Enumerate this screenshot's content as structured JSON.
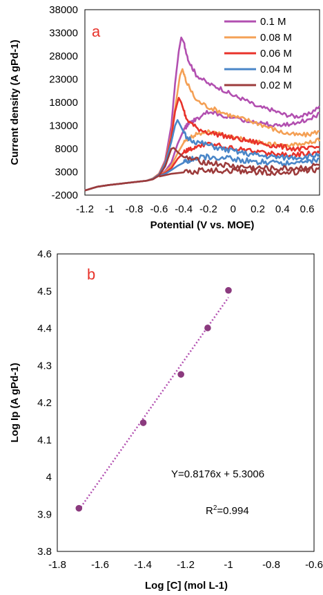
{
  "chart_data": [
    {
      "type": "line",
      "panel_label": "a",
      "xlabel": "Potential (V vs. MOE)",
      "ylabel": "Current density (A gPd-1)",
      "xlim": [
        -1.2,
        0.7
      ],
      "ylim": [
        -2000,
        38000
      ],
      "x_ticks": [
        "-1.2",
        "-1",
        "-0.8",
        "-0.6",
        "-0.4",
        "-0.2",
        "0",
        "0.2",
        "0.4",
        "0.6"
      ],
      "y_ticks": [
        "-2000",
        "3000",
        "8000",
        "13000",
        "18000",
        "23000",
        "28000",
        "33000",
        "38000"
      ],
      "legend_position": "top-right",
      "series": [
        {
          "name": "0.1 M",
          "color": "#b24fb0",
          "forward": [
            [
              -1.2,
              -1000
            ],
            [
              -1.1,
              -200
            ],
            [
              -1,
              200
            ],
            [
              -0.9,
              500
            ],
            [
              -0.8,
              800
            ],
            [
              -0.7,
              1100
            ],
            [
              -0.65,
              1600
            ],
            [
              -0.6,
              2600
            ],
            [
              -0.55,
              5500
            ],
            [
              -0.5,
              13000
            ],
            [
              -0.47,
              22000
            ],
            [
              -0.44,
              29000
            ],
            [
              -0.42,
              32000
            ],
            [
              -0.4,
              31000
            ],
            [
              -0.36,
              27000
            ],
            [
              -0.3,
              24000
            ],
            [
              -0.2,
              22000
            ],
            [
              -0.1,
              21000
            ],
            [
              0,
              19500
            ],
            [
              0.1,
              18500
            ],
            [
              0.2,
              17000
            ],
            [
              0.3,
              16500
            ],
            [
              0.4,
              15500
            ],
            [
              0.5,
              15000
            ],
            [
              0.6,
              15200
            ],
            [
              0.7,
              17200
            ]
          ],
          "reverse": [
            [
              0.7,
              15500
            ],
            [
              0.6,
              14200
            ],
            [
              0.5,
              13600
            ],
            [
              0.4,
              13100
            ],
            [
              0.3,
              13200
            ],
            [
              0.2,
              13600
            ],
            [
              0.1,
              14100
            ],
            [
              0,
              14500
            ],
            [
              -0.1,
              15200
            ],
            [
              -0.2,
              16000
            ],
            [
              -0.3,
              14300
            ],
            [
              -0.36,
              13500
            ],
            [
              -0.4,
              12000
            ],
            [
              -0.45,
              9000
            ],
            [
              -0.5,
              5000
            ],
            [
              -0.55,
              3200
            ],
            [
              -0.6,
              2300
            ]
          ]
        },
        {
          "name": "0.08 M",
          "color": "#f4a055",
          "forward": [
            [
              -1.2,
              -1000
            ],
            [
              -1.1,
              -200
            ],
            [
              -1,
              200
            ],
            [
              -0.9,
              500
            ],
            [
              -0.8,
              800
            ],
            [
              -0.7,
              1100
            ],
            [
              -0.65,
              1600
            ],
            [
              -0.6,
              2600
            ],
            [
              -0.55,
              5200
            ],
            [
              -0.5,
              11000
            ],
            [
              -0.46,
              18500
            ],
            [
              -0.43,
              23800
            ],
            [
              -0.41,
              25200
            ],
            [
              -0.38,
              22500
            ],
            [
              -0.3,
              18500
            ],
            [
              -0.2,
              17000
            ],
            [
              -0.1,
              16000
            ],
            [
              0,
              15000
            ],
            [
              0.1,
              14300
            ],
            [
              0.2,
              13500
            ],
            [
              0.3,
              12500
            ],
            [
              0.4,
              11500
            ],
            [
              0.5,
              11000
            ],
            [
              0.6,
              11000
            ],
            [
              0.7,
              11800
            ]
          ],
          "reverse": [
            [
              0.7,
              10000
            ],
            [
              0.6,
              9300
            ],
            [
              0.5,
              8900
            ],
            [
              0.4,
              8800
            ],
            [
              0.3,
              9000
            ],
            [
              0.2,
              9400
            ],
            [
              0.1,
              10000
            ],
            [
              0,
              10600
            ],
            [
              -0.1,
              11200
            ],
            [
              -0.2,
              11600
            ],
            [
              -0.3,
              11000
            ],
            [
              -0.36,
              10300
            ],
            [
              -0.4,
              9300
            ],
            [
              -0.45,
              7000
            ],
            [
              -0.5,
              4300
            ],
            [
              -0.55,
              3000
            ],
            [
              -0.6,
              2300
            ]
          ]
        },
        {
          "name": "0.06 M",
          "color": "#e8322a",
          "forward": [
            [
              -1.2,
              -1000
            ],
            [
              -1.1,
              -200
            ],
            [
              -1,
              200
            ],
            [
              -0.9,
              500
            ],
            [
              -0.8,
              800
            ],
            [
              -0.7,
              1100
            ],
            [
              -0.65,
              1500
            ],
            [
              -0.6,
              2500
            ],
            [
              -0.55,
              5000
            ],
            [
              -0.5,
              10500
            ],
            [
              -0.47,
              16000
            ],
            [
              -0.44,
              19000
            ],
            [
              -0.42,
              18000
            ],
            [
              -0.38,
              14500
            ],
            [
              -0.3,
              12500
            ],
            [
              -0.2,
              11500
            ],
            [
              -0.1,
              11000
            ],
            [
              0,
              10300
            ],
            [
              0.1,
              9800
            ],
            [
              0.2,
              9300
            ],
            [
              0.3,
              8800
            ],
            [
              0.4,
              8400
            ],
            [
              0.5,
              8000
            ],
            [
              0.6,
              7900
            ],
            [
              0.7,
              8400
            ]
          ],
          "reverse": [
            [
              0.7,
              7200
            ],
            [
              0.6,
              6900
            ],
            [
              0.5,
              6700
            ],
            [
              0.4,
              6800
            ],
            [
              0.3,
              7000
            ],
            [
              0.2,
              7300
            ],
            [
              0.1,
              7700
            ],
            [
              0,
              8100
            ],
            [
              -0.1,
              8600
            ],
            [
              -0.2,
              9000
            ],
            [
              -0.3,
              8700
            ],
            [
              -0.36,
              7800
            ],
            [
              -0.4,
              7200
            ],
            [
              -0.45,
              5800
            ],
            [
              -0.5,
              3800
            ],
            [
              -0.55,
              2800
            ],
            [
              -0.6,
              2200
            ]
          ]
        },
        {
          "name": "0.04 M",
          "color": "#4a86c8",
          "forward": [
            [
              -1.2,
              -1000
            ],
            [
              -1.1,
              -200
            ],
            [
              -1,
              200
            ],
            [
              -0.9,
              500
            ],
            [
              -0.8,
              800
            ],
            [
              -0.7,
              1100
            ],
            [
              -0.65,
              1500
            ],
            [
              -0.6,
              2400
            ],
            [
              -0.55,
              4800
            ],
            [
              -0.5,
              9500
            ],
            [
              -0.47,
              13000
            ],
            [
              -0.45,
              14200
            ],
            [
              -0.43,
              13200
            ],
            [
              -0.38,
              10500
            ],
            [
              -0.3,
              9500
            ],
            [
              -0.2,
              8800
            ],
            [
              -0.1,
              8000
            ],
            [
              0,
              7500
            ],
            [
              0.1,
              7000
            ],
            [
              0.2,
              6600
            ],
            [
              0.3,
              6300
            ],
            [
              0.4,
              6100
            ],
            [
              0.5,
              6200
            ],
            [
              0.6,
              6200
            ],
            [
              0.7,
              6900
            ]
          ],
          "reverse": [
            [
              0.7,
              5800
            ],
            [
              0.6,
              5300
            ],
            [
              0.5,
              5000
            ],
            [
              0.4,
              4900
            ],
            [
              0.3,
              5000
            ],
            [
              0.2,
              5200
            ],
            [
              0.1,
              5500
            ],
            [
              0,
              5800
            ],
            [
              -0.1,
              6100
            ],
            [
              -0.2,
              6300
            ],
            [
              -0.3,
              6000
            ],
            [
              -0.36,
              5500
            ],
            [
              -0.4,
              5000
            ],
            [
              -0.45,
              4300
            ],
            [
              -0.5,
              3400
            ],
            [
              -0.55,
              2600
            ],
            [
              -0.6,
              2100
            ]
          ]
        },
        {
          "name": "0.02 M",
          "color": "#9c3b3b",
          "forward": [
            [
              -1.2,
              -1000
            ],
            [
              -1.1,
              -200
            ],
            [
              -1,
              200
            ],
            [
              -0.9,
              500
            ],
            [
              -0.8,
              800
            ],
            [
              -0.7,
              1100
            ],
            [
              -0.65,
              1400
            ],
            [
              -0.6,
              2200
            ],
            [
              -0.55,
              4200
            ],
            [
              -0.52,
              6500
            ],
            [
              -0.5,
              8000
            ],
            [
              -0.48,
              8200
            ],
            [
              -0.45,
              7300
            ],
            [
              -0.4,
              6200
            ],
            [
              -0.3,
              5500
            ],
            [
              -0.2,
              5000
            ],
            [
              -0.1,
              4600
            ],
            [
              0,
              4200
            ],
            [
              0.1,
              4000
            ],
            [
              0.2,
              3800
            ],
            [
              0.3,
              3700
            ],
            [
              0.4,
              3700
            ],
            [
              0.5,
              3800
            ],
            [
              0.6,
              4000
            ],
            [
              0.7,
              4500
            ]
          ],
          "reverse": [
            [
              0.7,
              3600
            ],
            [
              0.6,
              3200
            ],
            [
              0.5,
              3000
            ],
            [
              0.4,
              2900
            ],
            [
              0.3,
              2900
            ],
            [
              0.2,
              3000
            ],
            [
              0.1,
              3100
            ],
            [
              0,
              3200
            ],
            [
              -0.1,
              3300
            ],
            [
              -0.2,
              3400
            ],
            [
              -0.3,
              3200
            ],
            [
              -0.4,
              2900
            ],
            [
              -0.5,
              2600
            ],
            [
              -0.55,
              2300
            ],
            [
              -0.6,
              2000
            ]
          ]
        }
      ]
    },
    {
      "type": "scatter",
      "panel_label": "b",
      "xlabel": "Log [C] (mol L-1)",
      "ylabel": "Log Ip (A gPd-1)",
      "xlim": [
        -1.8,
        -0.6
      ],
      "ylim": [
        3.8,
        4.6
      ],
      "x_ticks": [
        "-1.8",
        "-1.6",
        "-1.4",
        "-1.2",
        "-1",
        "-0.8",
        "-0.6"
      ],
      "y_ticks": [
        "3.8",
        "3.9",
        "4",
        "4.1",
        "4.2",
        "4.3",
        "4.4",
        "4.5",
        "4.6"
      ],
      "color": "#8b3a7e",
      "points": [
        [
          -1.699,
          3.916
        ],
        [
          -1.398,
          4.146
        ],
        [
          -1.222,
          4.276
        ],
        [
          -1.097,
          4.401
        ],
        [
          -1.0,
          4.502
        ]
      ],
      "trendline": {
        "slope": 0.8176,
        "intercept": 5.3006,
        "color": "#b24fb0"
      },
      "equation": "Y=0.8176x + 5.3006",
      "r2_prefix": "R",
      "r2_sup": "2",
      "r2_value": "=0.994"
    }
  ]
}
